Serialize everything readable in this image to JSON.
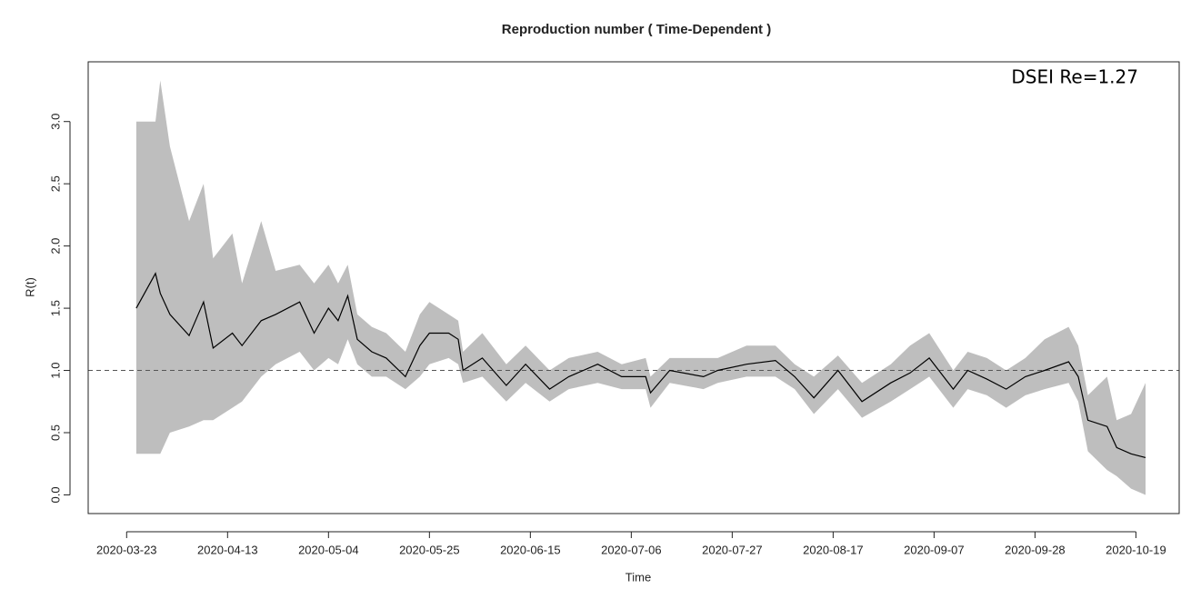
{
  "chart_data": {
    "type": "line",
    "title": "Reproduction number ( Time-Dependent )",
    "xlabel": "Time",
    "ylabel": "R(t)",
    "annotation": "DSEI Re=1.27",
    "x": [
      "2020-03-25",
      "2020-03-29",
      "2020-03-30",
      "2020-04-01",
      "2020-04-05",
      "2020-04-08",
      "2020-04-10",
      "2020-04-14",
      "2020-04-16",
      "2020-04-20",
      "2020-04-23",
      "2020-04-28",
      "2020-05-01",
      "2020-05-04",
      "2020-05-06",
      "2020-05-08",
      "2020-05-10",
      "2020-05-13",
      "2020-05-16",
      "2020-05-20",
      "2020-05-23",
      "2020-05-25",
      "2020-05-29",
      "2020-05-31",
      "2020-06-01",
      "2020-06-05",
      "2020-06-10",
      "2020-06-14",
      "2020-06-19",
      "2020-06-23",
      "2020-06-29",
      "2020-07-04",
      "2020-07-09",
      "2020-07-10",
      "2020-07-14",
      "2020-07-21",
      "2020-07-24",
      "2020-07-30",
      "2020-08-05",
      "2020-08-09",
      "2020-08-13",
      "2020-08-18",
      "2020-08-23",
      "2020-08-29",
      "2020-09-02",
      "2020-09-06",
      "2020-09-11",
      "2020-09-14",
      "2020-09-18",
      "2020-09-22",
      "2020-09-26",
      "2020-09-30",
      "2020-10-05",
      "2020-10-07",
      "2020-10-09",
      "2020-10-13",
      "2020-10-15",
      "2020-10-18",
      "2020-10-21"
    ],
    "values": [
      1.5,
      1.78,
      1.62,
      1.45,
      1.28,
      1.55,
      1.18,
      1.3,
      1.2,
      1.4,
      1.45,
      1.55,
      1.3,
      1.5,
      1.4,
      1.6,
      1.25,
      1.15,
      1.1,
      0.95,
      1.2,
      1.3,
      1.3,
      1.25,
      1.0,
      1.1,
      0.88,
      1.05,
      0.85,
      0.95,
      1.05,
      0.95,
      0.95,
      0.82,
      1.0,
      0.95,
      1.0,
      1.05,
      1.08,
      0.95,
      0.78,
      1.0,
      0.75,
      0.9,
      0.98,
      1.1,
      0.85,
      1.0,
      0.93,
      0.85,
      0.95,
      1.0,
      1.07,
      0.95,
      0.6,
      0.55,
      0.38,
      0.33,
      0.3
    ],
    "upper": [
      3.0,
      3.0,
      3.33,
      2.8,
      2.2,
      2.5,
      1.9,
      2.1,
      1.7,
      2.2,
      1.8,
      1.85,
      1.7,
      1.85,
      1.7,
      1.85,
      1.45,
      1.35,
      1.3,
      1.15,
      1.45,
      1.55,
      1.45,
      1.4,
      1.15,
      1.3,
      1.05,
      1.2,
      1.0,
      1.1,
      1.15,
      1.05,
      1.1,
      0.95,
      1.1,
      1.1,
      1.1,
      1.2,
      1.2,
      1.05,
      0.95,
      1.12,
      0.9,
      1.05,
      1.2,
      1.3,
      1.0,
      1.15,
      1.1,
      1.0,
      1.1,
      1.25,
      1.35,
      1.2,
      0.8,
      0.95,
      0.6,
      0.65,
      0.9
    ],
    "lower": [
      0.33,
      0.33,
      0.33,
      0.5,
      0.55,
      0.6,
      0.6,
      0.7,
      0.75,
      0.95,
      1.05,
      1.15,
      1.0,
      1.1,
      1.05,
      1.25,
      1.05,
      0.95,
      0.95,
      0.85,
      0.95,
      1.05,
      1.1,
      1.05,
      0.9,
      0.95,
      0.75,
      0.9,
      0.75,
      0.85,
      0.9,
      0.85,
      0.85,
      0.7,
      0.9,
      0.85,
      0.9,
      0.95,
      0.95,
      0.85,
      0.65,
      0.85,
      0.62,
      0.75,
      0.85,
      0.95,
      0.7,
      0.85,
      0.8,
      0.7,
      0.8,
      0.85,
      0.9,
      0.75,
      0.35,
      0.2,
      0.15,
      0.05,
      0.0
    ],
    "color": "#000000",
    "band_color": "#bebebe",
    "hline": 1,
    "xlim": [
      "2020-03-15",
      "2020-10-28"
    ],
    "xticks": [
      "2020-03-23",
      "2020-04-13",
      "2020-05-04",
      "2020-05-25",
      "2020-06-15",
      "2020-07-06",
      "2020-07-27",
      "2020-08-17",
      "2020-09-07",
      "2020-09-28",
      "2020-10-19"
    ],
    "ylim": [
      -0.15,
      3.48
    ],
    "yticks": [
      {
        "value": 0,
        "label": "0.0"
      },
      0.5,
      {
        "value": 1,
        "label": "1.0"
      },
      1.5,
      {
        "value": 2,
        "label": "2.0"
      },
      2.5,
      {
        "value": 3,
        "label": "3.0"
      }
    ]
  }
}
